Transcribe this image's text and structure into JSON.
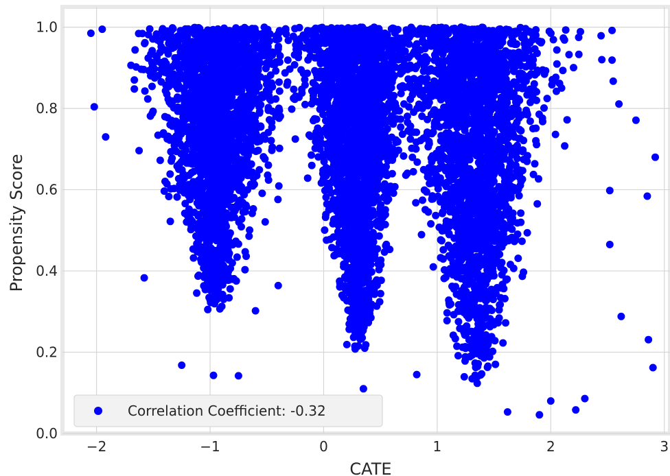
{
  "chart_data": {
    "type": "scatter",
    "title": "",
    "xlabel": "CATE",
    "ylabel": "Propensity Score",
    "xlim": [
      -2.3,
      3.05
    ],
    "ylim": [
      0.0,
      1.05
    ],
    "xticks": [
      -2,
      -1,
      0,
      1,
      2,
      3
    ],
    "xtick_labels": [
      "−2",
      "−1",
      "0",
      "1",
      "2",
      "3"
    ],
    "yticks": [
      0.0,
      0.2,
      0.4,
      0.6,
      0.8,
      1.0
    ],
    "ytick_labels": [
      "0.0",
      "0.2",
      "0.4",
      "0.6",
      "0.8",
      "1.0"
    ],
    "grid": true,
    "legend_position": "lower-left",
    "series": [
      {
        "name": "Correlation Coefficient: -0.32",
        "color": "#0000ff",
        "clusters": [
          {
            "x_center": -0.95,
            "x_spread": 0.7,
            "y_min": 0.3,
            "y_max": 1.0,
            "narrowing": "downward"
          },
          {
            "x_center": 0.3,
            "x_spread": 0.55,
            "y_min": 0.2,
            "y_max": 1.0,
            "narrowing": "downward"
          },
          {
            "x_center": 1.35,
            "x_spread": 0.75,
            "y_min": 0.12,
            "y_max": 1.0,
            "narrowing": "downward"
          }
        ],
        "points": [
          [
            -2.05,
            0.985
          ],
          [
            -2.02,
            0.804
          ],
          [
            -1.92,
            0.73
          ],
          [
            -1.95,
            0.995
          ],
          [
            -1.58,
            0.383
          ],
          [
            -1.25,
            0.168
          ],
          [
            -0.97,
            0.143
          ],
          [
            -0.75,
            0.142
          ],
          [
            -0.6,
            0.302
          ],
          [
            -0.4,
            0.364
          ],
          [
            0.35,
            0.11
          ],
          [
            0.82,
            0.145
          ],
          [
            1.62,
            0.053
          ],
          [
            1.9,
            0.046
          ],
          [
            2.0,
            0.08
          ],
          [
            2.3,
            0.086
          ],
          [
            2.22,
            0.058
          ],
          [
            2.52,
            0.465
          ],
          [
            2.62,
            0.288
          ],
          [
            2.52,
            0.598
          ],
          [
            2.75,
            0.771
          ],
          [
            2.85,
            0.584
          ],
          [
            2.86,
            0.231
          ],
          [
            2.9,
            0.162
          ],
          [
            2.92,
            0.68
          ],
          [
            2.54,
            0.992
          ],
          [
            2.6,
            0.811
          ],
          [
            2.45,
            0.92
          ],
          [
            2.55,
            0.867
          ],
          [
            -1.02,
            0.305
          ],
          [
            -1.35,
            0.522
          ]
        ]
      }
    ],
    "legend": {
      "label": "Correlation Coefficient: -0.32"
    }
  }
}
